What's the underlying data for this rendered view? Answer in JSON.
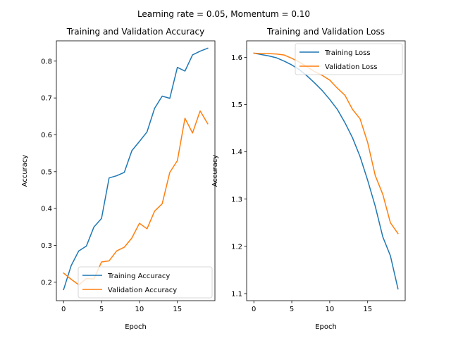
{
  "figure": {
    "suptitle": "Learning rate = 0.05, Momentum = 0.10"
  },
  "chart_data": [
    {
      "type": "line",
      "title": "Training and Validation Accuracy",
      "xlabel": "Epoch",
      "ylabel": "Accuracy",
      "xlim": [
        -0.95,
        19.95
      ],
      "ylim": [
        0.15,
        0.855
      ],
      "xticks": [
        0,
        5,
        10,
        15
      ],
      "yticks": [
        0.2,
        0.3,
        0.4,
        0.5,
        0.6,
        0.7,
        0.8
      ],
      "grid": false,
      "legend_position": "lower-right",
      "x": [
        0,
        1,
        2,
        3,
        4,
        5,
        6,
        7,
        8,
        9,
        10,
        11,
        12,
        13,
        14,
        15,
        16,
        17,
        18,
        19
      ],
      "series": [
        {
          "name": "Training Accuracy",
          "color": "#1f77b4",
          "values": [
            0.18,
            0.245,
            0.285,
            0.298,
            0.35,
            0.373,
            0.483,
            0.489,
            0.498,
            0.557,
            0.582,
            0.608,
            0.672,
            0.705,
            0.699,
            0.783,
            0.773,
            0.817,
            0.827,
            0.835
          ]
        },
        {
          "name": "Validation Accuracy",
          "color": "#ff7f0e",
          "values": [
            0.225,
            0.208,
            0.193,
            0.21,
            0.209,
            0.255,
            0.258,
            0.285,
            0.295,
            0.32,
            0.36,
            0.345,
            0.393,
            0.413,
            0.498,
            0.53,
            0.645,
            0.605,
            0.665,
            0.63
          ]
        }
      ]
    },
    {
      "type": "line",
      "title": "Training and Validation Loss",
      "xlabel": "Epoch",
      "ylabel": "Accuracy",
      "xlim": [
        -0.95,
        19.95
      ],
      "ylim": [
        1.085,
        1.635
      ],
      "xticks": [
        0,
        5,
        10,
        15
      ],
      "yticks": [
        1.1,
        1.2,
        1.3,
        1.4,
        1.5,
        1.6
      ],
      "grid": false,
      "legend_position": "top-right",
      "x": [
        0,
        1,
        2,
        3,
        4,
        5,
        6,
        7,
        8,
        9,
        10,
        11,
        12,
        13,
        14,
        15,
        16,
        17,
        18,
        19
      ],
      "series": [
        {
          "name": "Training Loss",
          "color": "#1f77b4",
          "values": [
            1.609,
            1.606,
            1.603,
            1.599,
            1.592,
            1.584,
            1.574,
            1.561,
            1.546,
            1.53,
            1.511,
            1.49,
            1.462,
            1.43,
            1.39,
            1.34,
            1.285,
            1.22,
            1.18,
            1.11
          ]
        },
        {
          "name": "Validation Loss",
          "color": "#ff7f0e",
          "values": [
            1.609,
            1.608,
            1.608,
            1.607,
            1.605,
            1.598,
            1.59,
            1.58,
            1.57,
            1.562,
            1.552,
            1.535,
            1.52,
            1.49,
            1.47,
            1.42,
            1.35,
            1.31,
            1.25,
            1.227
          ]
        }
      ]
    }
  ]
}
